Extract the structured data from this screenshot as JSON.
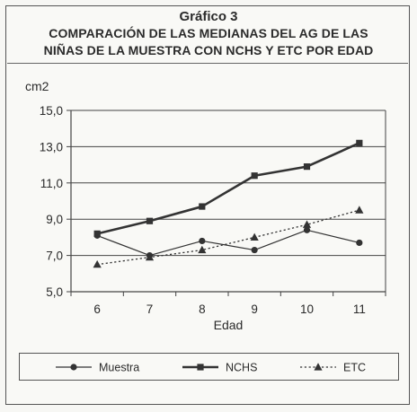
{
  "header": {
    "title_line1": "Gráfico 3",
    "title_line2": "COMPARACIÓN DE LAS MEDIANAS DEL AG DE LAS",
    "title_line3": "NIÑAS DE LA MUESTRA CON NCHS Y ETC POR EDAD"
  },
  "chart_data": {
    "type": "line",
    "title": "Gráfico 3 — COMPARACIÓN DE LAS MEDIANAS DEL AG DE LAS NIÑAS DE LA MUESTRA CON NCHS Y ETC POR EDAD",
    "xlabel": "Edad",
    "ylabel": "cm2",
    "x": [
      6,
      7,
      8,
      9,
      10,
      11
    ],
    "x_tick_labels": [
      "6",
      "7",
      "8",
      "9",
      "10",
      "11"
    ],
    "y_ticks": [
      5,
      7,
      9,
      11,
      13,
      15
    ],
    "y_tick_labels": [
      "5,0",
      "7,0",
      "9,0",
      "11,0",
      "13,0",
      "15,0"
    ],
    "ylim": [
      5,
      15
    ],
    "grid": "horizontal",
    "legend_position": "bottom",
    "series": [
      {
        "name": "Muestra",
        "values": [
          8.1,
          7.0,
          7.8,
          7.3,
          8.4,
          7.7
        ],
        "marker": "circle",
        "line": "solid-thin",
        "color": "#333333"
      },
      {
        "name": "NCHS",
        "values": [
          8.2,
          8.9,
          9.7,
          11.4,
          11.9,
          13.2
        ],
        "marker": "square",
        "line": "solid-thick",
        "color": "#333333"
      },
      {
        "name": "ETC",
        "values": [
          6.5,
          6.9,
          7.3,
          8.0,
          8.7,
          9.5
        ],
        "marker": "triangle",
        "line": "dotted",
        "color": "#333333"
      }
    ]
  }
}
